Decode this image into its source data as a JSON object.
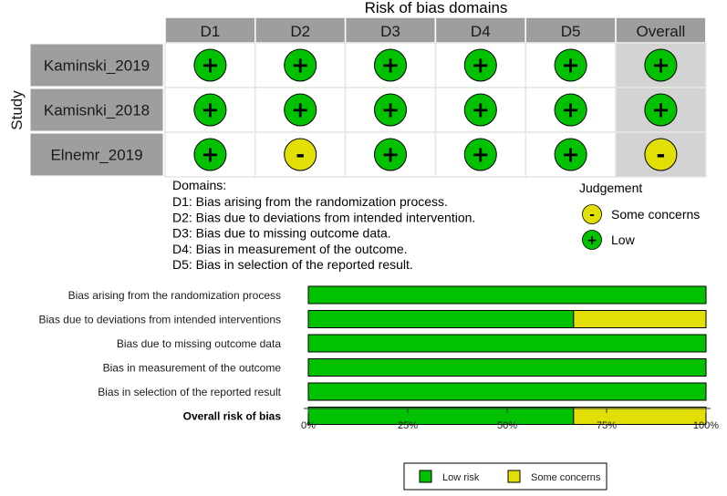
{
  "chart_data": [
    {
      "type": "table",
      "title": "Risk of bias domains",
      "y_axis_label": "Study",
      "columns": [
        "D1",
        "D2",
        "D3",
        "D4",
        "D5",
        "Overall"
      ],
      "rows": [
        {
          "study": "Kaminski_2019",
          "judgements": [
            "low",
            "low",
            "low",
            "low",
            "low",
            "low"
          ]
        },
        {
          "study": "Kamisnki_2018",
          "judgements": [
            "low",
            "low",
            "low",
            "low",
            "low",
            "low"
          ]
        },
        {
          "study": "Elnemr_2019",
          "judgements": [
            "low",
            "some",
            "low",
            "low",
            "low",
            "some"
          ]
        }
      ],
      "symbols": {
        "low": "+",
        "some": "-"
      },
      "domains_heading": "Domains:",
      "domain_notes": [
        "D1: Bias arising from the randomization process.",
        "D2: Bias due to deviations from intended intervention.",
        "D3: Bias due to missing outcome data.",
        "D4: Bias in measurement of the outcome.",
        "D5: Bias in selection of the reported result."
      ],
      "judgement_legend": {
        "title": "Judgement",
        "items": [
          {
            "key": "some",
            "symbol": "-",
            "label": "Some concerns"
          },
          {
            "key": "low",
            "symbol": "+",
            "label": "Low"
          }
        ]
      }
    },
    {
      "type": "bar",
      "orientation": "horizontal",
      "stacked": true,
      "categories": [
        "Bias arising from the randomization process",
        "Bias due to deviations from intended interventions",
        "Bias due to missing outcome data",
        "Bias in measurement of the outcome",
        "Bias in selection of the reported result",
        "Overall risk of bias"
      ],
      "bold_categories": [
        "Overall risk of bias"
      ],
      "series": [
        {
          "name": "Low risk",
          "key": "low",
          "values": [
            100,
            66.7,
            100,
            100,
            100,
            66.7
          ]
        },
        {
          "name": "Some concerns",
          "key": "some",
          "values": [
            0,
            33.3,
            0,
            0,
            0,
            33.3
          ]
        }
      ],
      "xlim": [
        0,
        100
      ],
      "x_ticks": [
        0,
        25,
        50,
        75,
        100
      ],
      "x_tick_labels": [
        "0%",
        "25%",
        "50%",
        "75%",
        "100%"
      ],
      "legend_position": "bottom"
    }
  ],
  "colors": {
    "low": "#02c100",
    "some": "#e2df07",
    "header_bg": "#9e9e9e",
    "overall_bg": "#d3d3d3",
    "cell_bg": "#ffffff",
    "grid_line": "#e3e8e3"
  }
}
